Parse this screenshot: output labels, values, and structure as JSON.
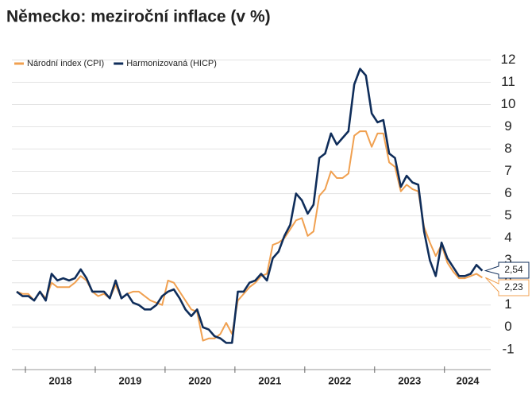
{
  "chart_data": {
    "type": "line",
    "title": "Německo: meziroční inflace (v %)",
    "categories": [
      null,
      null,
      null,
      null,
      null,
      null,
      null,
      "2018",
      null,
      null,
      null,
      null,
      null,
      null,
      null,
      null,
      null,
      null,
      null,
      "2019",
      null,
      null,
      null,
      null,
      null,
      null,
      null,
      null,
      null,
      null,
      null,
      "2020",
      null,
      null,
      null,
      null,
      null,
      null,
      null,
      null,
      null,
      null,
      null,
      "2021",
      null,
      null,
      null,
      null,
      null,
      null,
      null,
      null,
      null,
      null,
      null,
      "2022",
      null,
      null,
      null,
      null,
      null,
      null,
      null,
      null,
      null,
      null,
      null,
      "2023",
      null,
      null,
      null,
      null,
      null,
      null,
      null,
      null,
      null,
      "2024",
      null,
      null,
      null
    ],
    "series": [
      {
        "name": "Národní index (CPI)",
        "color": "#f0a050",
        "end_label": "2,23",
        "values": [
          1.6,
          1.5,
          1.5,
          1.2,
          1.6,
          1.3,
          2.0,
          1.8,
          1.8,
          1.8,
          2.0,
          2.3,
          2.1,
          1.6,
          1.4,
          1.5,
          1.3,
          1.9,
          1.3,
          1.5,
          1.6,
          1.6,
          1.4,
          1.2,
          1.1,
          1.0,
          2.1,
          2.0,
          1.6,
          1.2,
          0.8,
          0.7,
          -0.6,
          -0.5,
          -0.5,
          -0.3,
          0.2,
          -0.3,
          1.2,
          1.5,
          1.8,
          2.0,
          2.3,
          2.4,
          3.7,
          3.8,
          4.0,
          4.4,
          4.8,
          4.9,
          4.1,
          4.3,
          5.9,
          6.2,
          7.0,
          6.7,
          6.7,
          6.9,
          8.6,
          8.8,
          8.8,
          8.1,
          8.7,
          8.7,
          7.4,
          7.2,
          6.1,
          6.4,
          6.2,
          6.1,
          4.5,
          3.8,
          3.2,
          3.7,
          2.9,
          2.5,
          2.2,
          2.2,
          2.3,
          2.4,
          2.23
        ]
      },
      {
        "name": "Harmonizovaná (HICP)",
        "color": "#0f2d5a",
        "end_label": "2,54",
        "values": [
          1.6,
          1.4,
          1.4,
          1.2,
          1.6,
          1.2,
          2.4,
          2.1,
          2.2,
          2.1,
          2.2,
          2.6,
          2.2,
          1.6,
          1.6,
          1.6,
          1.3,
          2.1,
          1.3,
          1.5,
          1.1,
          1.0,
          0.8,
          0.8,
          1.0,
          1.4,
          1.6,
          1.7,
          1.3,
          0.8,
          0.5,
          0.8,
          0.0,
          -0.1,
          -0.4,
          -0.5,
          -0.7,
          -0.7,
          1.6,
          1.6,
          2.0,
          2.1,
          2.4,
          2.1,
          3.1,
          3.4,
          4.1,
          4.6,
          6.0,
          5.7,
          5.1,
          5.5,
          7.6,
          7.8,
          8.7,
          8.2,
          8.5,
          8.8,
          10.9,
          11.6,
          11.3,
          9.6,
          9.2,
          9.3,
          7.8,
          7.6,
          6.3,
          6.8,
          6.5,
          6.4,
          4.3,
          3.0,
          2.3,
          3.8,
          3.1,
          2.7,
          2.3,
          2.3,
          2.4,
          2.8,
          2.54
        ]
      }
    ],
    "ylim": [
      -1.4,
      12.3
    ],
    "yticks": [
      -1,
      0,
      1,
      2,
      3,
      4,
      5,
      6,
      7,
      8,
      9,
      10,
      11,
      12
    ],
    "grid": true,
    "legend": "top-left"
  }
}
